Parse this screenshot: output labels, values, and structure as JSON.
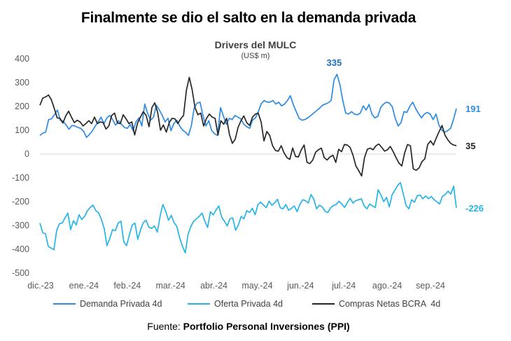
{
  "headline": "Finalmente se dio el salto en la demanda privada",
  "source": {
    "prefix": "Fuente:",
    "name": "Portfolio Personal Inversiones (PPI)"
  },
  "chart_data": {
    "type": "line",
    "title": "Drivers del MULC",
    "subtitle": "(US$ m)",
    "ylim": [
      -500,
      400
    ],
    "yticks": [
      400,
      300,
      200,
      100,
      0,
      -100,
      -200,
      -300,
      -400,
      -500
    ],
    "xticks": [
      "dic.-23",
      "ene.-24",
      "feb.-24",
      "mar.-24",
      "abr.-24",
      "may.-24",
      "jun.-24",
      "jul.-24",
      "ago.-24",
      "sep.-24"
    ],
    "grid": false,
    "legend_position": "bottom",
    "series": [
      {
        "name": "Demanda Privada 4d",
        "color": "#2E8BE6",
        "last_label": "191",
        "peak_label": "335",
        "values": [
          78,
          88,
          92,
          145,
          148,
          165,
          185,
          142,
          138,
          122,
          104,
          120,
          118,
          112,
          108,
          96,
          70,
          82,
          97,
          118,
          135,
          155,
          127,
          152,
          162,
          145,
          121,
          140,
          125,
          112,
          108,
          124,
          98,
          135,
          152,
          118,
          210,
          170,
          142,
          155,
          205,
          185,
          162,
          135,
          150,
          98,
          128,
          142,
          118,
          100,
          92,
          78,
          120,
          195,
          214,
          218,
          162,
          118,
          140,
          98,
          85,
          78,
          195,
          160,
          125,
          150,
          145,
          162,
          155,
          148,
          125,
          115,
          108,
          142,
          152,
          178,
          212,
          225,
          218,
          218,
          225,
          210,
          218,
          202,
          210,
          225,
          245,
          208,
          178,
          150,
          142,
          145,
          152,
          162,
          172,
          182,
          192,
          205,
          210,
          215,
          225,
          312,
          335,
          292,
          225,
          172,
          168,
          178,
          168,
          165,
          172,
          202,
          185,
          208,
          168,
          152,
          158,
          195,
          210,
          218,
          214,
          198,
          150,
          118,
          132,
          178,
          175,
          200,
          218,
          192,
          170,
          152,
          168,
          175,
          168,
          145,
          168,
          122,
          100,
          92,
          98,
          108,
          145,
          191
        ]
      },
      {
        "name": "Oferta Privada 4d",
        "color": "#25B4E8",
        "last_label": "-226",
        "values": [
          -290,
          -330,
          -335,
          -388,
          -395,
          -402,
          -320,
          -292,
          -290,
          -268,
          -248,
          -318,
          -280,
          -298,
          -255,
          -275,
          -262,
          -238,
          -224,
          -214,
          -238,
          -247,
          -275,
          -312,
          -385,
          -355,
          -318,
          -322,
          -290,
          -282,
          -368,
          -385,
          -340,
          -298,
          -290,
          -358,
          -318,
          -288,
          -278,
          -308,
          -312,
          -302,
          -328,
          -262,
          -212,
          -240,
          -278,
          -258,
          -288,
          -305,
          -352,
          -388,
          -415,
          -338,
          -305,
          -282,
          -272,
          -262,
          -248,
          -282,
          -308,
          -242,
          -256,
          -235,
          -218,
          -265,
          -282,
          -302,
          -272,
          -268,
          -320,
          -298,
          -262,
          -272,
          -238,
          -245,
          -228,
          -255,
          -212,
          -202,
          -215,
          -225,
          -198,
          -215,
          -205,
          -190,
          -226,
          -230,
          -212,
          -236,
          -228,
          -218,
          -242,
          -212,
          -192,
          -196,
          -206,
          -170,
          -190,
          -230,
          -215,
          -222,
          -240,
          -246,
          -226,
          -216,
          -212,
          -198,
          -210,
          -224,
          -203,
          -186,
          -206,
          -196,
          -192,
          -188,
          -218,
          -230,
          -210,
          -218,
          -224,
          -150,
          -172,
          -200,
          -182,
          -222,
          -170,
          -152,
          -132,
          -120,
          -168,
          -216,
          -230,
          -192,
          -202,
          -175,
          -172,
          -188,
          -176,
          -188,
          -178,
          -192,
          -200,
          -210,
          -178,
          -170,
          -156,
          -168,
          -135,
          -226
        ]
      },
      {
        "name": "Compras Netas BCRA  4d",
        "color": "#262626",
        "last_label": "35",
        "values": [
          205,
          235,
          240,
          248,
          228,
          192,
          152,
          150,
          130,
          160,
          180,
          155,
          132,
          142,
          135,
          118,
          128,
          140,
          128,
          155,
          128,
          135,
          132,
          105,
          118,
          162,
          172,
          130,
          128,
          165,
          148,
          128,
          135,
          80,
          130,
          155,
          178,
          162,
          115,
          195,
          215,
          175,
          100,
          122,
          92,
          132,
          150,
          148,
          128,
          148,
          162,
          268,
          322,
          270,
          195,
          165,
          172,
          118,
          150,
          168,
          155,
          150,
          80,
          140,
          125,
          150,
          82,
          45,
          62,
          112,
          140,
          160,
          132,
          120,
          155,
          168,
          172,
          135,
          55,
          95,
          78,
          35,
          15,
          12,
          35,
          5,
          -15,
          -22,
          25,
          -10,
          -12,
          18,
          38,
          -35,
          -40,
          -25,
          8,
          18,
          25,
          -15,
          -25,
          -12,
          -5,
          -35,
          20,
          10,
          40,
          38,
          28,
          -5,
          -50,
          -70,
          -92,
          -15,
          20,
          25,
          18,
          35,
          42,
          28,
          12,
          18,
          32,
          10,
          -15,
          -38,
          -50,
          5,
          40,
          35,
          -62,
          -68,
          -58,
          -32,
          -20,
          40,
          55,
          38,
          68,
          95,
          120,
          80,
          60,
          45,
          38,
          35
        ]
      }
    ]
  }
}
